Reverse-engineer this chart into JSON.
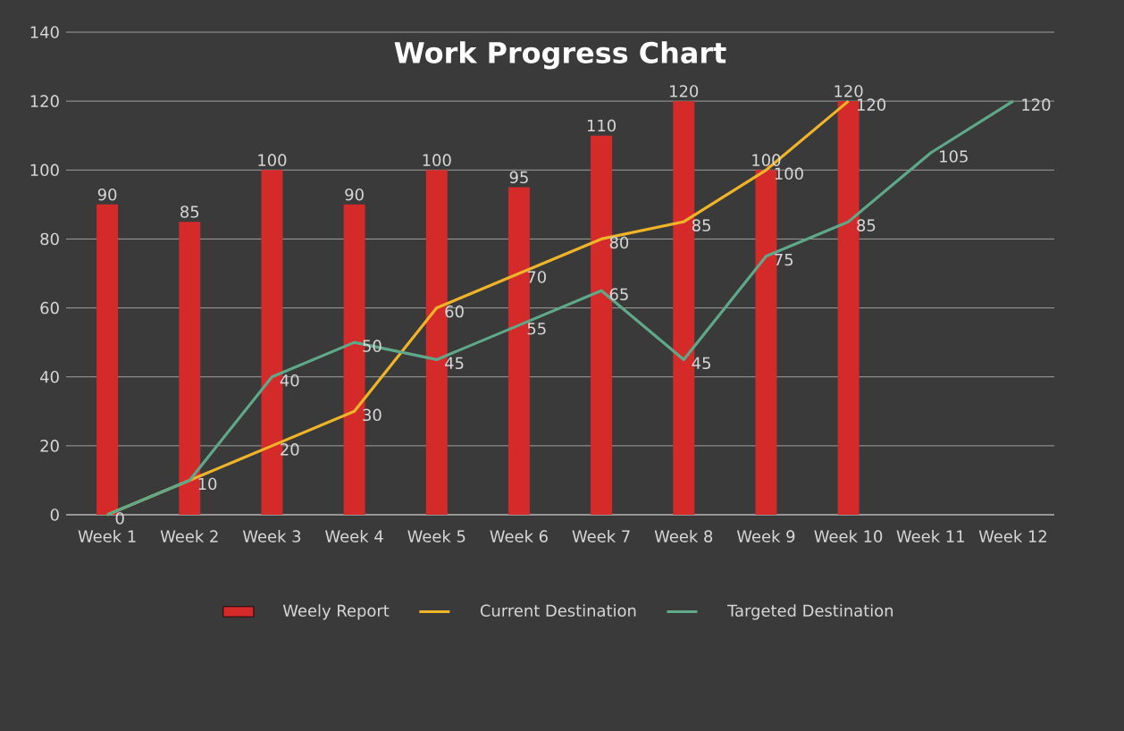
{
  "chart_data": {
    "type": "bar",
    "title": "Work Progress Chart",
    "categories": [
      "Week 1",
      "Week 2",
      "Week 3",
      "Week 4",
      "Week 5",
      "Week 6",
      "Week 7",
      "Week 8",
      "Week 9",
      "Week 10",
      "Week 11",
      "Week 12"
    ],
    "series": [
      {
        "name": "Weely Report",
        "type": "bar",
        "color": "#d42a2a",
        "values": [
          90,
          85,
          100,
          90,
          100,
          95,
          110,
          120,
          100,
          120,
          null,
          null
        ],
        "value_labels": [
          "90",
          "85",
          "100",
          "90",
          "100",
          "95",
          "110",
          "120",
          "100",
          "120",
          null,
          null
        ]
      },
      {
        "name": "Current Destination",
        "type": "line",
        "color": "#f0b429",
        "values": [
          0,
          10,
          20,
          30,
          60,
          70,
          80,
          85,
          100,
          120,
          null,
          null
        ],
        "value_labels": [
          null,
          null,
          "20",
          "30",
          "60",
          "70",
          "80",
          "85",
          "100",
          "120",
          null,
          null
        ]
      },
      {
        "name": "Targeted Destination",
        "type": "line",
        "color": "#5fa88a",
        "values": [
          0,
          10,
          40,
          50,
          45,
          55,
          65,
          45,
          75,
          85,
          105,
          120
        ],
        "value_labels": [
          "0",
          "10",
          "40",
          "50",
          "45",
          "55",
          "65",
          "45",
          "75",
          "85",
          "105",
          "120"
        ]
      }
    ],
    "ylim": [
      0,
      140
    ],
    "yticks": [
      0,
      20,
      40,
      60,
      80,
      100,
      120,
      140
    ],
    "grid": "y",
    "legend": "bottom",
    "marker": "none",
    "line_style": "solid"
  }
}
